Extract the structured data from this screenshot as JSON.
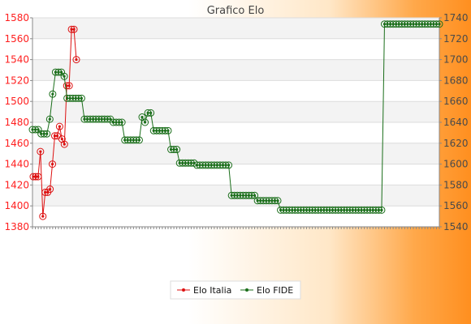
{
  "chart_data": {
    "type": "line",
    "title": "Grafico Elo",
    "left_axis": {
      "ylim": [
        1380,
        1580
      ],
      "ticks": [
        1380,
        1400,
        1420,
        1440,
        1460,
        1480,
        1500,
        1520,
        1540,
        1560,
        1580
      ]
    },
    "right_axis": {
      "ylim": [
        1540,
        1740
      ],
      "ticks": [
        1540,
        1560,
        1580,
        1600,
        1620,
        1640,
        1660,
        1680,
        1700,
        1720,
        1740
      ]
    },
    "grid": true,
    "legend_position": "bottom",
    "series": [
      {
        "name": "Elo Italia",
        "color": "#dd1111",
        "axis": "left",
        "values": [
          1428,
          1428,
          1428,
          1452,
          1390,
          1413,
          1413,
          1416,
          1440,
          1467,
          1467,
          1476,
          1464,
          1459,
          1515,
          1515,
          1569,
          1569,
          1540
        ]
      },
      {
        "name": "Elo FIDE",
        "color": "#1a6e1a",
        "axis": "right",
        "values": [
          1633,
          1633,
          1633,
          1629,
          1629,
          1629,
          1643,
          1667,
          1688,
          1688,
          1688,
          1684,
          1663,
          1663,
          1663,
          1663,
          1663,
          1663,
          1643,
          1643,
          1643,
          1643,
          1643,
          1643,
          1643,
          1643,
          1643,
          1643,
          1640,
          1640,
          1640,
          1640,
          1623,
          1623,
          1623,
          1623,
          1623,
          1623,
          1645,
          1640,
          1649,
          1649,
          1632,
          1632,
          1632,
          1632,
          1632,
          1632,
          1614,
          1614,
          1614,
          1601,
          1601,
          1601,
          1601,
          1601,
          1601,
          1599,
          1599,
          1599,
          1599,
          1599,
          1599,
          1599,
          1599,
          1599,
          1599,
          1599,
          1599,
          1570,
          1570,
          1570,
          1570,
          1570,
          1570,
          1570,
          1570,
          1570,
          1565,
          1565,
          1565,
          1565,
          1565,
          1565,
          1565,
          1565,
          1556,
          1556,
          1556,
          1556,
          1556,
          1556,
          1556,
          1556,
          1556,
          1556,
          1556,
          1556,
          1556,
          1556,
          1556,
          1556,
          1556,
          1556,
          1556,
          1556,
          1556,
          1556,
          1556,
          1556,
          1556,
          1556,
          1556,
          1556,
          1556,
          1556,
          1556,
          1556,
          1556,
          1556,
          1556,
          1556,
          1734,
          1734,
          1734,
          1734,
          1734,
          1734,
          1734,
          1734,
          1734,
          1734,
          1734,
          1734,
          1734,
          1734,
          1734,
          1734,
          1734,
          1734,
          1734,
          1734
        ]
      }
    ]
  }
}
